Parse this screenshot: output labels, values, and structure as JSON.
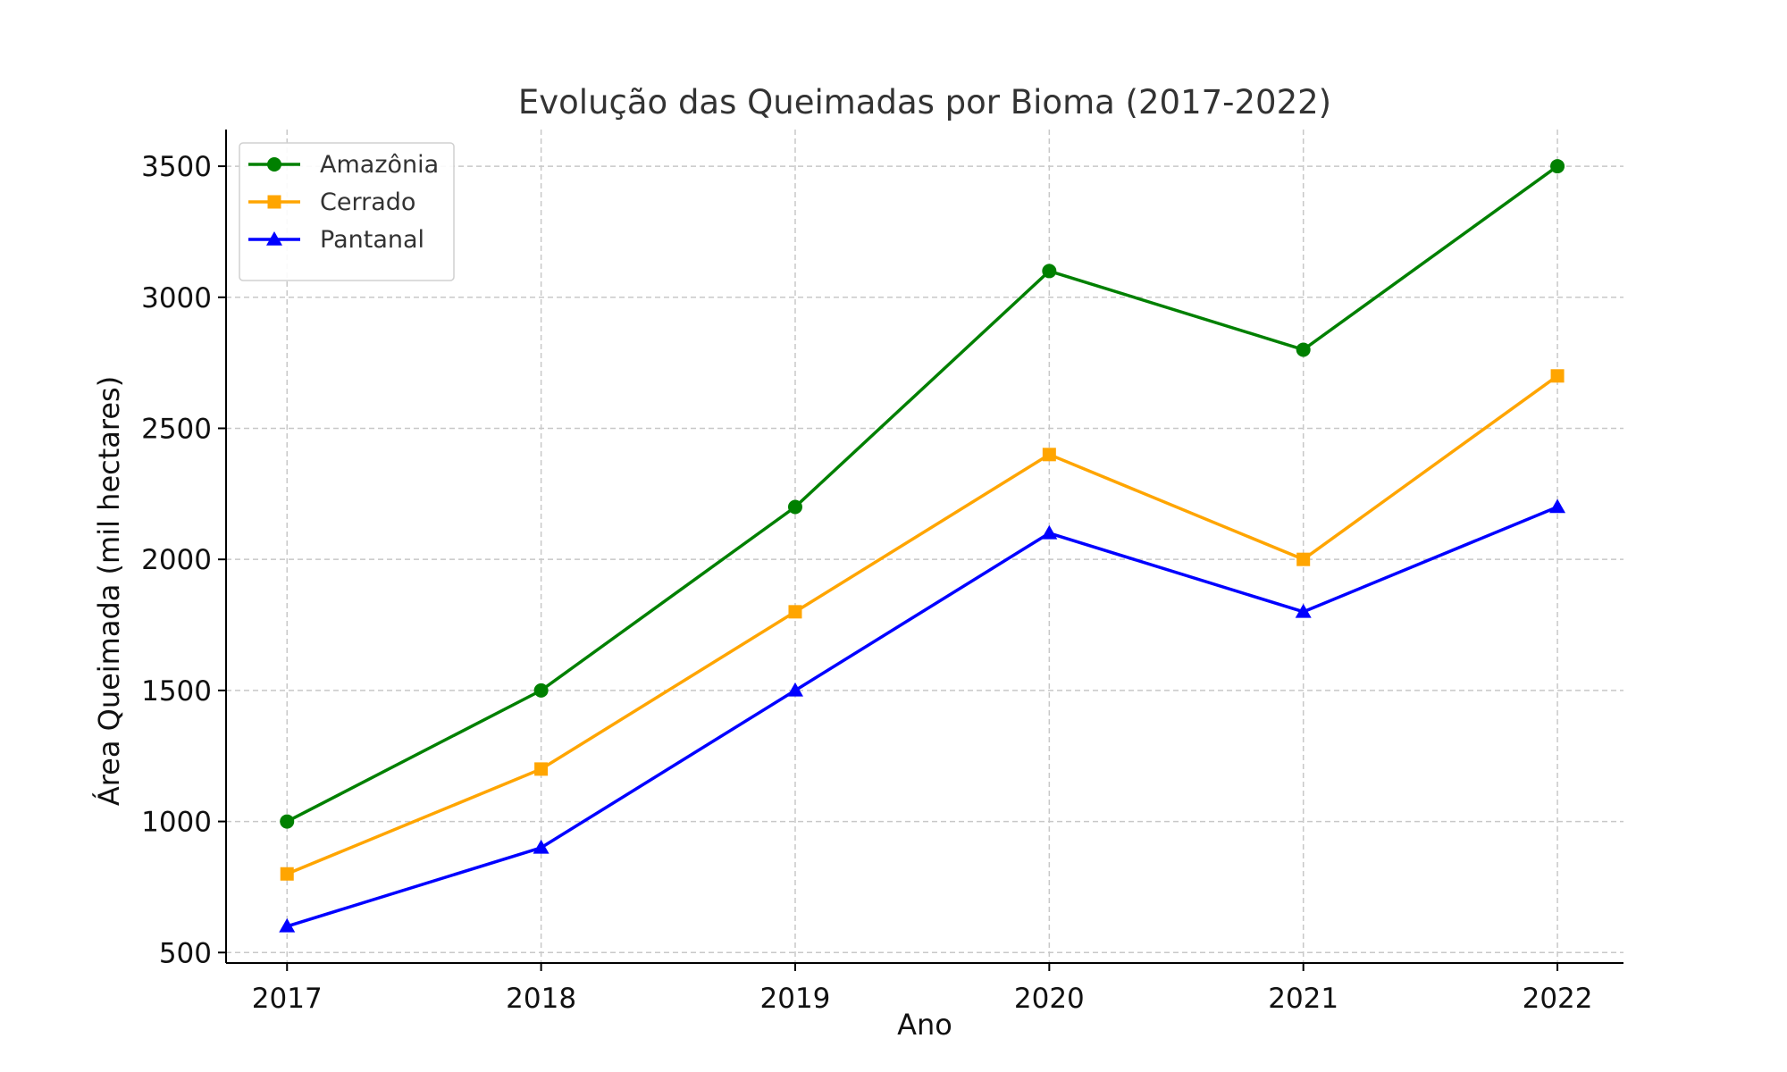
{
  "chart_data": {
    "type": "line",
    "title": "Evolução das Queimadas por Bioma (2017-2022)",
    "xlabel": "Ano",
    "ylabel": "Área Queimada (mil hectares)",
    "x": [
      2017,
      2018,
      2019,
      2020,
      2021,
      2022
    ],
    "x_tick_labels": [
      "2017",
      "2018",
      "2019",
      "2020",
      "2021",
      "2022"
    ],
    "y_ticks": [
      500,
      1000,
      1500,
      2000,
      2500,
      3000,
      3500
    ],
    "y_tick_labels": [
      "500",
      "1000",
      "1500",
      "2000",
      "2500",
      "3000",
      "3500"
    ],
    "xlim": [
      2016.76,
      2022.26
    ],
    "ylim": [
      460,
      3640
    ],
    "grid": true,
    "legend_position": "top-left",
    "series": [
      {
        "name": "Amazônia",
        "color": "#008000",
        "marker": "circle",
        "values": [
          1000,
          1500,
          2200,
          3100,
          2800,
          3500
        ]
      },
      {
        "name": "Cerrado",
        "color": "#FFA500",
        "marker": "square",
        "values": [
          800,
          1200,
          1800,
          2400,
          2000,
          2700
        ]
      },
      {
        "name": "Pantanal",
        "color": "#0000FF",
        "marker": "triangle",
        "values": [
          600,
          900,
          1500,
          2100,
          1800,
          2200
        ]
      }
    ]
  }
}
